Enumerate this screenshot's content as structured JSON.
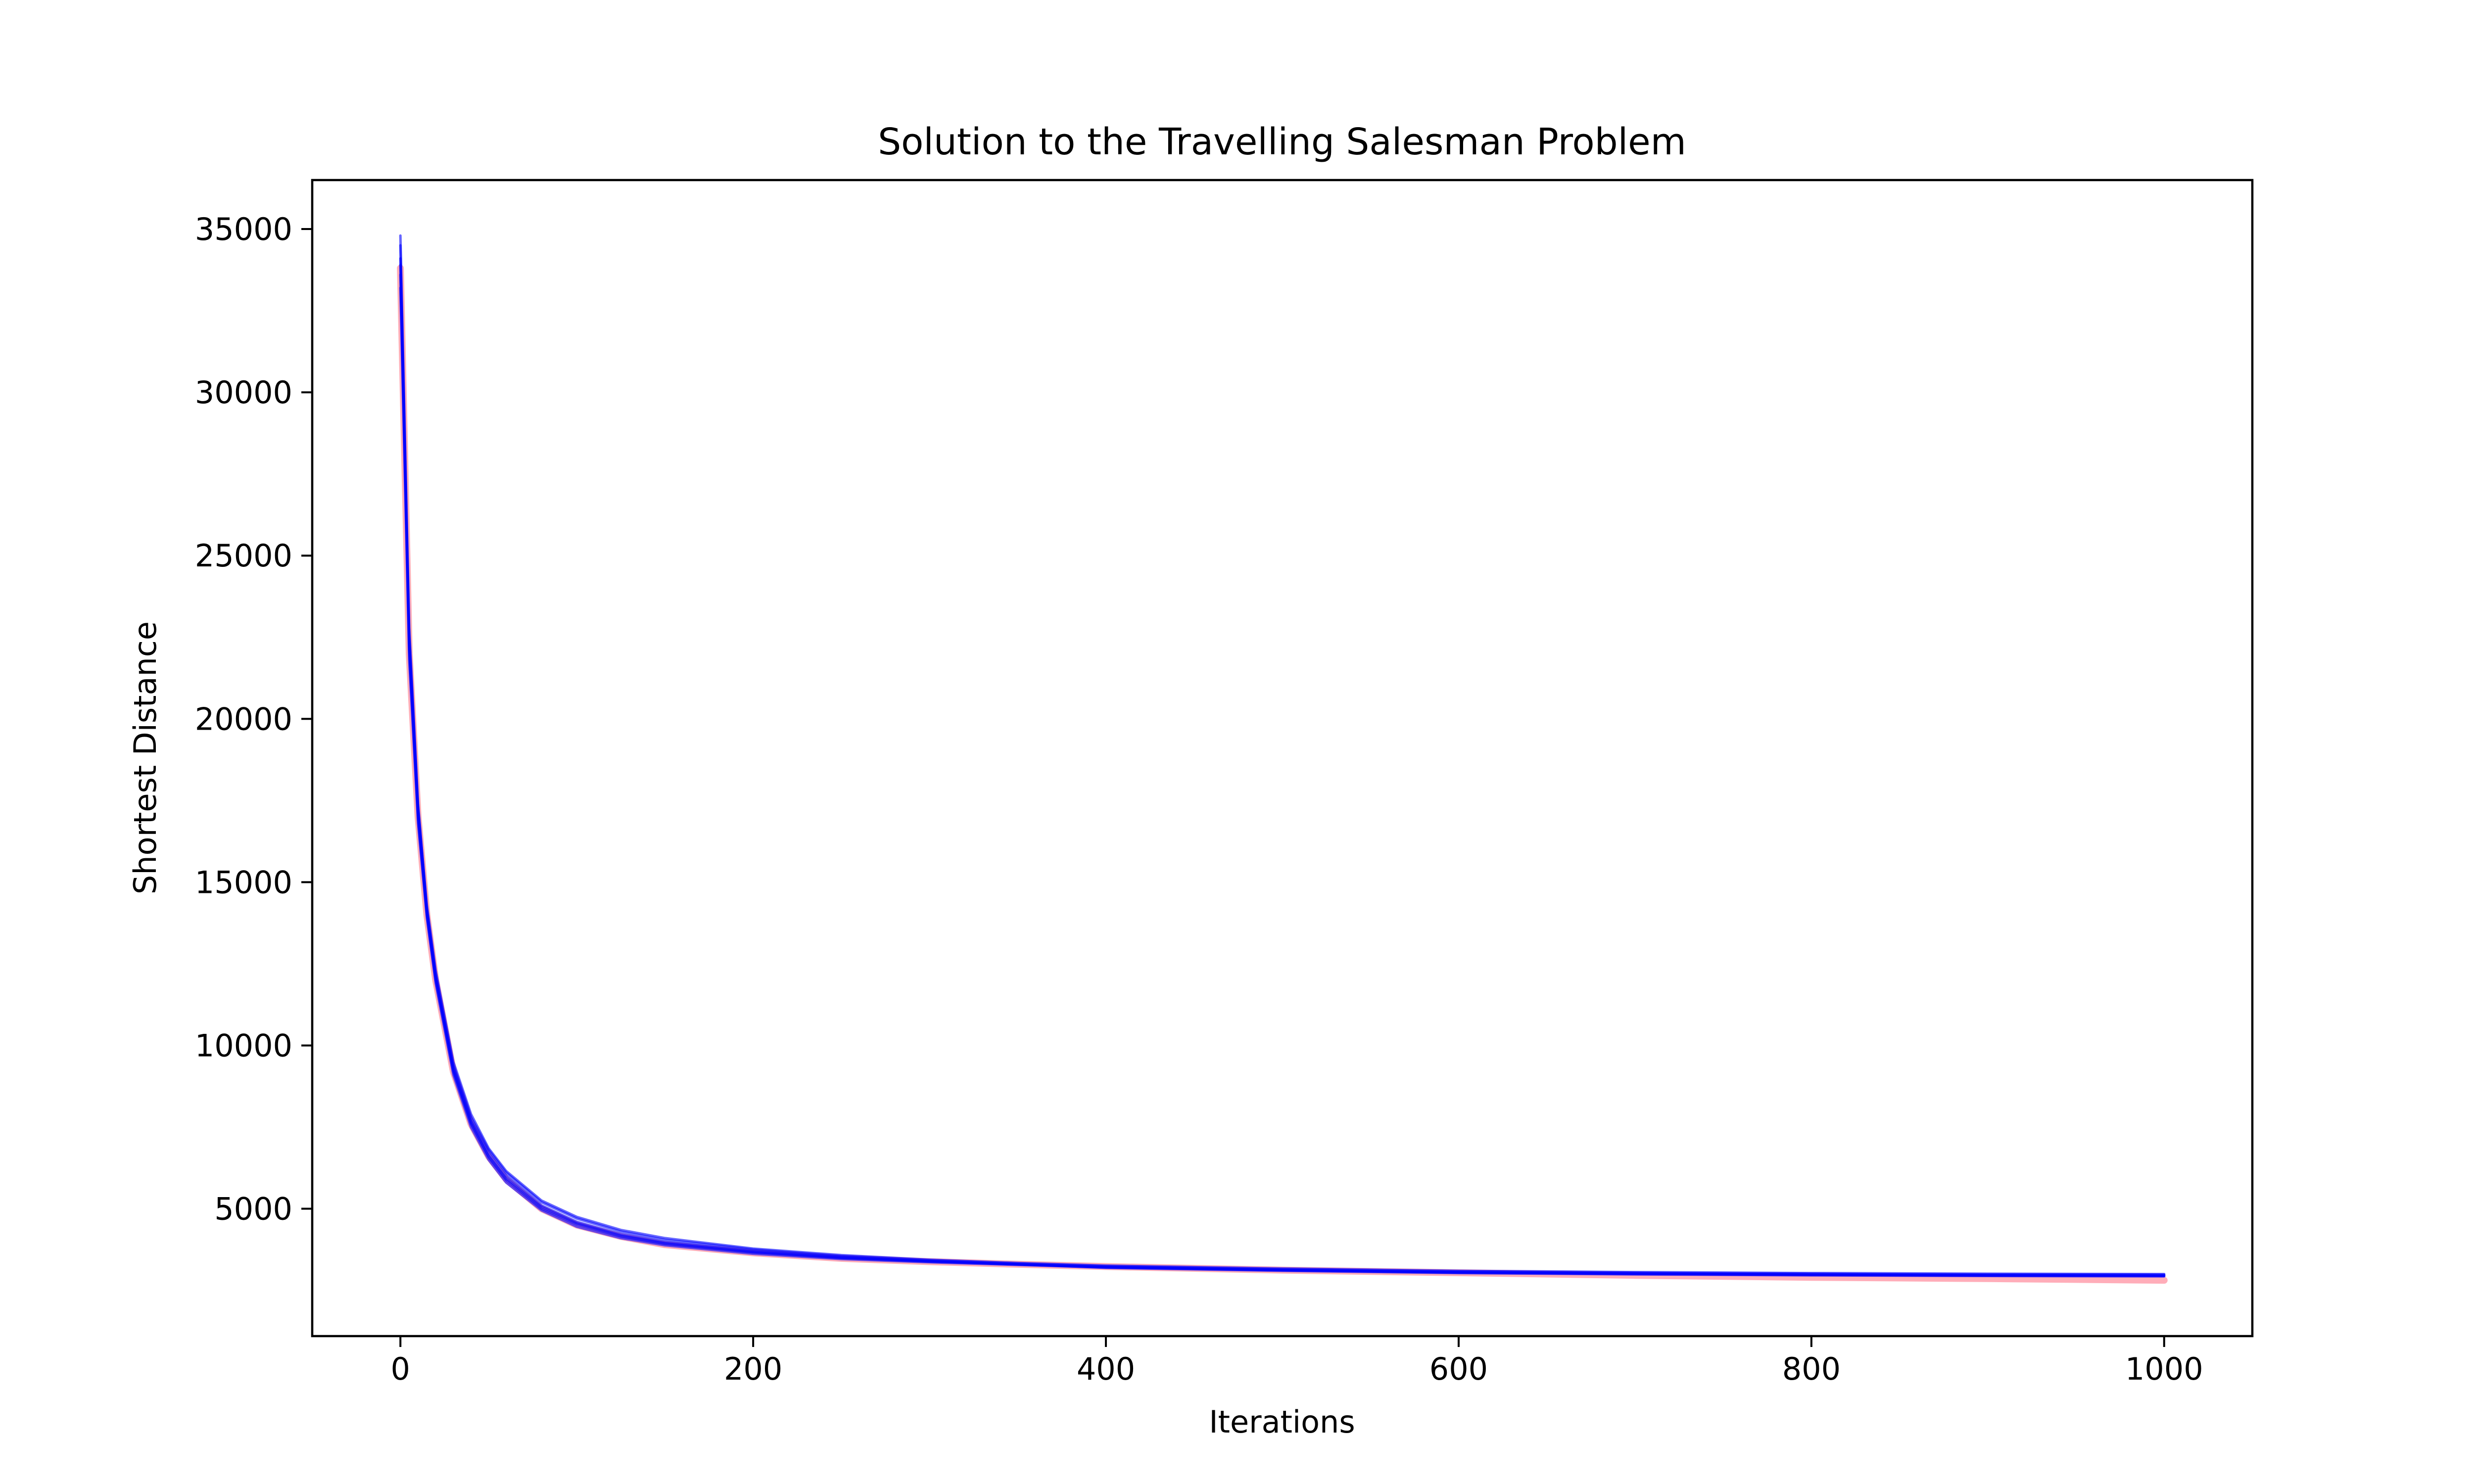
{
  "chart_data": {
    "type": "line",
    "title": "Solution to the Travelling Salesman Problem",
    "xlabel": "Iterations",
    "ylabel": "Shortest Distance",
    "xlim": [
      -50,
      1050
    ],
    "ylim": [
      1100,
      36500
    ],
    "x_ticks": [
      0,
      200,
      400,
      600,
      800,
      1000
    ],
    "x_tick_labels": [
      "0",
      "200",
      "400",
      "600",
      "800",
      "1000"
    ],
    "y_ticks": [
      5000,
      10000,
      15000,
      20000,
      25000,
      30000,
      35000
    ],
    "y_tick_labels": [
      "5000",
      "10000",
      "15000",
      "20000",
      "25000",
      "30000",
      "35000"
    ],
    "grid": false,
    "legend": "none",
    "series_colors": {
      "runs": "#0000ff",
      "reference": "#ff6a80"
    },
    "series": [
      {
        "color": "#ff6a80",
        "x": [
          0,
          5,
          10,
          15,
          20,
          30,
          40,
          50,
          60,
          80,
          100,
          125,
          150,
          200,
          250,
          300,
          350,
          400,
          500,
          600,
          700,
          800,
          900,
          1000
        ],
        "y": [
          33800,
          22000,
          17000,
          14000,
          12000,
          9200,
          7600,
          6600,
          5900,
          5000,
          4500,
          4150,
          3900,
          3650,
          3480,
          3380,
          3300,
          3230,
          3120,
          3040,
          2960,
          2900,
          2860,
          2810
        ]
      },
      {
        "color": "#0000ff",
        "x": [
          0,
          5,
          10,
          15,
          20,
          30,
          40,
          50,
          60,
          80,
          100,
          125,
          150,
          200,
          250,
          300,
          350,
          400,
          500,
          600,
          700,
          800,
          900,
          1000
        ],
        "y": [
          34800,
          22800,
          17400,
          14200,
          12200,
          9400,
          7800,
          6800,
          6100,
          5200,
          4700,
          4300,
          4050,
          3750,
          3550,
          3420,
          3320,
          3240,
          3150,
          3080,
          3040,
          3010,
          2990,
          2980
        ]
      },
      {
        "color": "#0000ff",
        "x": [
          0,
          5,
          10,
          15,
          20,
          30,
          40,
          50,
          60,
          80,
          100,
          125,
          150,
          200,
          250,
          300,
          350,
          400,
          500,
          600,
          700,
          800,
          900,
          1000
        ],
        "y": [
          33200,
          21800,
          16800,
          13900,
          11900,
          9100,
          7500,
          6500,
          5800,
          4950,
          4450,
          4100,
          3880,
          3620,
          3460,
          3360,
          3280,
          3200,
          3110,
          3040,
          3000,
          2970,
          2950,
          2940
        ]
      },
      {
        "color": "#0000ff",
        "x": [
          0,
          5,
          10,
          15,
          20,
          30,
          40,
          50,
          60,
          80,
          100,
          125,
          150,
          200,
          250,
          300,
          350,
          400,
          500,
          600,
          700,
          800,
          900,
          1000
        ],
        "y": [
          34100,
          22400,
          17200,
          14100,
          12100,
          9300,
          7700,
          6700,
          6000,
          5100,
          4600,
          4220,
          3980,
          3700,
          3520,
          3400,
          3300,
          3220,
          3130,
          3060,
          3020,
          2990,
          2970,
          2960
        ]
      },
      {
        "color": "#0000ff",
        "x": [
          0,
          5,
          10,
          15,
          20,
          30,
          40,
          50,
          60,
          80,
          100,
          125,
          150,
          200,
          250,
          300,
          350,
          400,
          500,
          600,
          700,
          800,
          900,
          1000
        ],
        "y": [
          33600,
          22100,
          16900,
          14000,
          12000,
          9250,
          7650,
          6620,
          5920,
          5050,
          4550,
          4180,
          3950,
          3680,
          3500,
          3390,
          3290,
          3210,
          3120,
          3050,
          3010,
          2980,
          2960,
          2950
        ]
      },
      {
        "color": "#0000ff",
        "x": [
          0,
          5,
          10,
          15,
          20,
          30,
          40,
          50,
          60,
          80,
          100,
          125,
          150,
          200,
          250,
          300,
          350,
          400,
          500,
          600,
          700,
          800,
          900,
          1000
        ],
        "y": [
          34500,
          22600,
          17300,
          14300,
          12300,
          9500,
          7900,
          6850,
          6150,
          5250,
          4750,
          4350,
          4100,
          3780,
          3580,
          3440,
          3340,
          3260,
          3170,
          3100,
          3060,
          3030,
          3010,
          3000
        ]
      },
      {
        "color": "#0000ff",
        "x": [
          0,
          5,
          10,
          15,
          20,
          30,
          40,
          50,
          60,
          80,
          100,
          125,
          150,
          200,
          250,
          300,
          350,
          400,
          500,
          600,
          700,
          800,
          900,
          1000
        ],
        "y": [
          33900,
          22200,
          17100,
          14050,
          12050,
          9200,
          7600,
          6580,
          5880,
          5000,
          4520,
          4150,
          3920,
          3660,
          3490,
          3380,
          3300,
          3190,
          3100,
          3030,
          2990,
          2960,
          2940,
          2930
        ]
      }
    ]
  }
}
